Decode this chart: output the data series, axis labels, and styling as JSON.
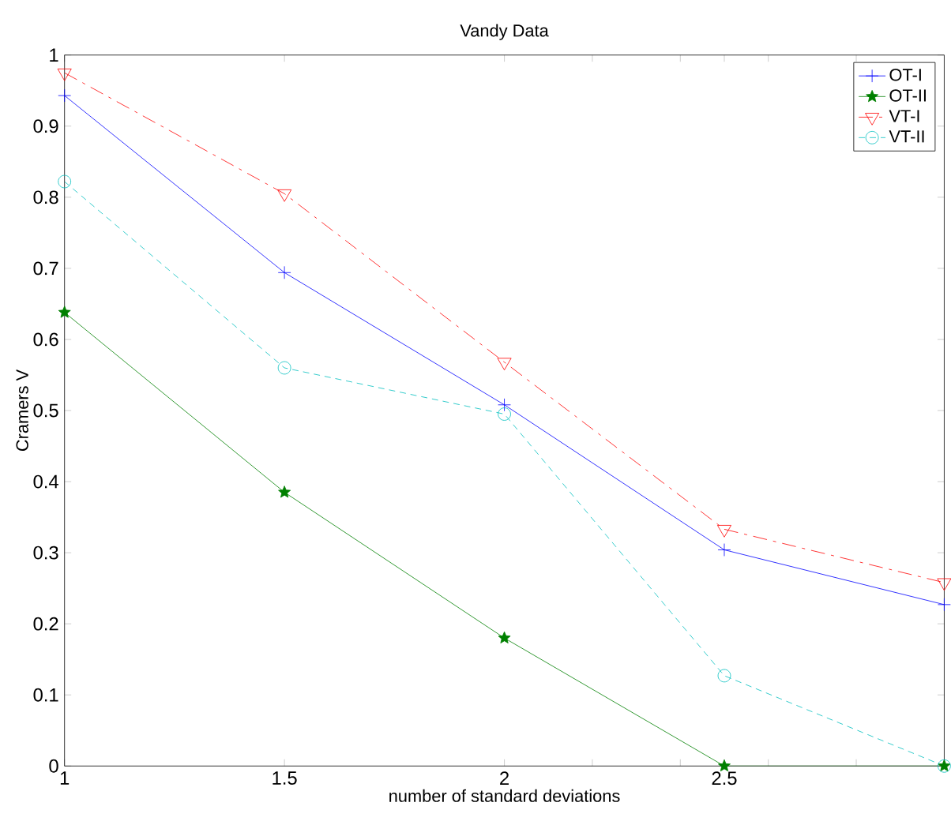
{
  "chart_data": {
    "type": "line",
    "title": "Vandy Data",
    "xlabel": "number of standard deviations",
    "ylabel": "Cramers V",
    "x": [
      1,
      1.5,
      2,
      2.5,
      3
    ],
    "series": [
      {
        "name": "OT-I",
        "color": "#0000ff",
        "marker": "cross",
        "line_style": "solid",
        "values": [
          0.943,
          0.694,
          0.508,
          0.304,
          0.227
        ]
      },
      {
        "name": "OT-II",
        "color": "#008000",
        "marker": "star",
        "line_style": "solid",
        "values": [
          0.638,
          0.385,
          0.18,
          0,
          0
        ]
      },
      {
        "name": "VT-I",
        "color": "#ff0000",
        "marker": "triangle",
        "line_style": "dashdot",
        "values": [
          0.975,
          0.805,
          0.568,
          0.333,
          0.258
        ]
      },
      {
        "name": "VT-II",
        "color": "#00bfbf",
        "marker": "circle",
        "line_style": "dashed",
        "values": [
          0.822,
          0.56,
          0.495,
          0.127,
          0
        ]
      }
    ],
    "xlim": [
      1,
      3
    ],
    "ylim": [
      0,
      1
    ],
    "xticks": [
      1,
      1.5,
      2,
      {
        "value": 2.2,
        "label": null
      },
      {
        "value": 2.4,
        "label": null
      },
      2.5,
      {
        "value": 2.6,
        "label": null
      },
      {
        "value": 2.8,
        "label": null
      }
    ],
    "yticks": [
      0,
      0.1,
      0.2,
      0.3,
      0.4,
      0.5,
      0.6,
      0.7,
      0.8,
      0.9,
      1
    ],
    "grid": false,
    "legend": "top right"
  }
}
